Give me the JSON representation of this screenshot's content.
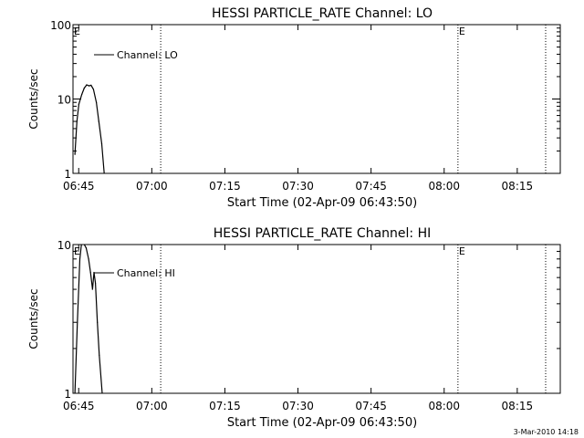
{
  "footer": {
    "timestamp": "3-Mar-2010 14:18"
  },
  "chart_data": [
    {
      "type": "line",
      "title": "HESSI PARTICLE_RATE Channel: LO",
      "xlabel": "Start Time (02-Apr-09 06:43:50)",
      "ylabel": "Counts/sec",
      "x_tick_labels": [
        "06:45",
        "07:00",
        "07:15",
        "07:30",
        "07:45",
        "08:00",
        "08:15"
      ],
      "y_tick_labels": [
        "1",
        "10",
        "100"
      ],
      "y_scale": "log",
      "ylim": [
        1,
        100
      ],
      "xlim_minutes_after_start": [
        0,
        100
      ],
      "legend": {
        "entries": [
          "Channel: LO"
        ],
        "placement": "top-left"
      },
      "event_markers": [
        {
          "minutes_after_start": 18,
          "label": ""
        },
        {
          "minutes_after_start": 79,
          "label": "E"
        },
        {
          "minutes_after_start": 97,
          "label": ""
        }
      ],
      "edge_labels": [
        "E"
      ],
      "series": [
        {
          "name": "Channel: LO",
          "x": [
            0.4,
            0.8,
            1.2,
            1.8,
            2.3,
            2.8,
            3.3,
            3.7,
            4.2,
            4.8,
            5.3,
            5.9,
            6.4
          ],
          "y": [
            1.8,
            5,
            8.5,
            11.5,
            14,
            15.5,
            15,
            15.3,
            13.5,
            9,
            5,
            2.5,
            1
          ]
        }
      ]
    },
    {
      "type": "line",
      "title": "HESSI PARTICLE_RATE Channel: HI",
      "xlabel": "Start Time (02-Apr-09 06:43:50)",
      "ylabel": "Counts/sec",
      "x_tick_labels": [
        "06:45",
        "07:00",
        "07:15",
        "07:30",
        "07:45",
        "08:00",
        "08:15"
      ],
      "y_tick_labels": [
        "1",
        "10"
      ],
      "y_scale": "log",
      "ylim": [
        1,
        10
      ],
      "xlim_minutes_after_start": [
        0,
        100
      ],
      "legend": {
        "entries": [
          "Channel: HI"
        ],
        "placement": "top-left"
      },
      "event_markers": [
        {
          "minutes_after_start": 18,
          "label": ""
        },
        {
          "minutes_after_start": 79,
          "label": "E"
        },
        {
          "minutes_after_start": 97,
          "label": ""
        }
      ],
      "edge_labels": [
        "E"
      ],
      "series": [
        {
          "name": "Channel: HI",
          "x": [
            0.4,
            0.9,
            1.4,
            1.8,
            2.3,
            2.7,
            3.2,
            3.6,
            4.0,
            4.3,
            4.6,
            5.0,
            5.4,
            6.0
          ],
          "y": [
            1,
            3,
            8,
            10.5,
            10,
            9.5,
            8,
            6.5,
            5,
            6.5,
            5.5,
            3,
            1.8,
            1
          ]
        }
      ]
    }
  ]
}
